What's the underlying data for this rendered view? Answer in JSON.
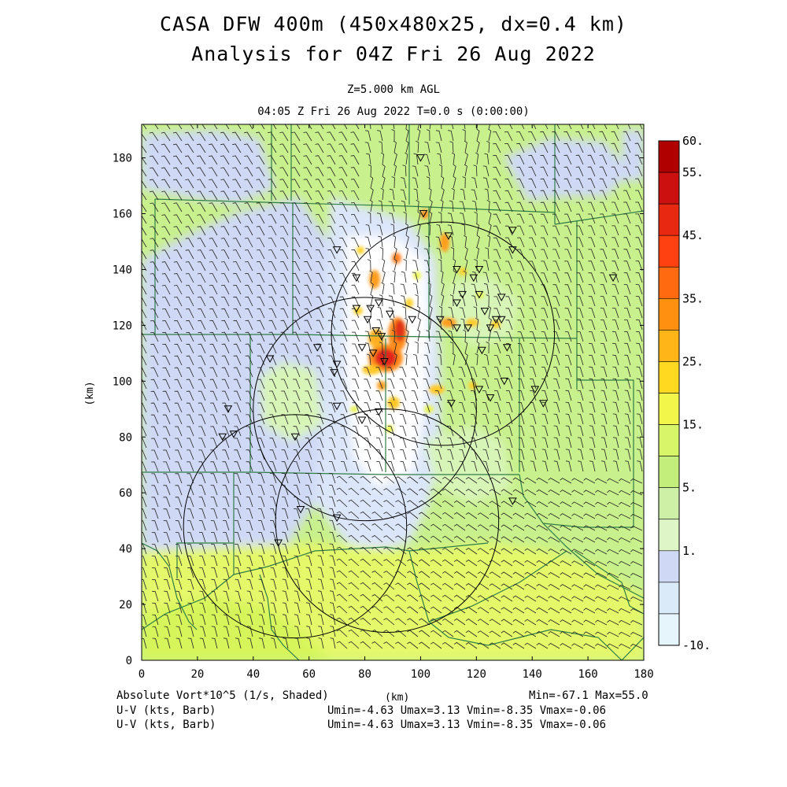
{
  "title": {
    "line1": "CASA DFW 400m (450x480x25, dx=0.4 km)",
    "line2": "Analysis for 04Z Fri 26 Aug 2022"
  },
  "subtitle": {
    "level": "Z=5.000 km AGL",
    "time": "04:05 Z Fri 26 Aug 2022    T=0.0 s (0:00:00)"
  },
  "axes": {
    "x_ticks": [
      "0",
      "20",
      "40",
      "60",
      "80",
      "100",
      "120",
      "140",
      "160",
      "180"
    ],
    "y_ticks": [
      "0",
      "20",
      "40",
      "60",
      "80",
      "100",
      "120",
      "140",
      "160",
      "180"
    ],
    "x_label": "(km)",
    "y_label": "(km)"
  },
  "colorbar": {
    "labels": [
      "60.",
      "55.",
      "45.",
      "35.",
      "25.",
      "15.",
      "5.",
      "1.",
      "-10."
    ],
    "colors": [
      "#b00000",
      "#cc1010",
      "#e82810",
      "#ff4010",
      "#ff6a10",
      "#ff9010",
      "#ffb418",
      "#ffd820",
      "#f2f54a",
      "#d8f56a",
      "#c4ee7c",
      "#cdf0a6",
      "#ddf5c7",
      "#cfd9f5",
      "#dbeaf8",
      "#e6f4fb"
    ]
  },
  "footer": {
    "field": "Absolute Vort*10^5 (1/s, Shaded)",
    "xunit": "(km)",
    "minmax": "Min=-67.1 Max=55.0",
    "wind1_label": "U-V (kts, Barb)",
    "wind1_stats": "Umin=-4.63 Umax=3.13 Vmin=-8.35 Vmax=-0.06",
    "wind2_label": "U-V (kts, Barb)",
    "wind2_stats": "Umin=-4.63 Umax=3.13 Vmin=-8.35 Vmax=-0.06"
  },
  "field_colors": {
    "background": "#c8f08c",
    "light_green": "#d8f5b8",
    "blue": "#cfd9f5",
    "yellow_green": "#e4f86a",
    "white": "#ffffff",
    "boundary": "#2e7d45"
  },
  "radars": [
    {
      "name": "radar-1",
      "x_km": 55,
      "y_km": 48,
      "radius_km": 40
    },
    {
      "name": "radar-2",
      "x_km": 88,
      "y_km": 50,
      "radius_km": 40
    },
    {
      "name": "radar-3",
      "x_km": 80,
      "y_km": 90,
      "radius_km": 40
    },
    {
      "name": "radar-4",
      "x_km": 108,
      "y_km": 117,
      "radius_km": 40
    }
  ],
  "stations_km": [
    [
      100,
      180
    ],
    [
      101,
      160
    ],
    [
      110,
      152
    ],
    [
      133,
      154
    ],
    [
      133,
      147
    ],
    [
      70,
      147
    ],
    [
      77,
      137
    ],
    [
      113,
      140
    ],
    [
      121,
      140
    ],
    [
      119,
      137
    ],
    [
      115,
      131
    ],
    [
      121,
      131
    ],
    [
      129,
      130
    ],
    [
      113,
      128
    ],
    [
      77,
      126
    ],
    [
      82,
      126
    ],
    [
      85,
      128
    ],
    [
      89,
      124
    ],
    [
      97,
      122
    ],
    [
      107,
      122
    ],
    [
      123,
      125
    ],
    [
      127,
      122
    ],
    [
      129,
      122
    ],
    [
      125,
      119
    ],
    [
      113,
      119
    ],
    [
      117,
      119
    ],
    [
      81,
      122
    ],
    [
      84,
      118
    ],
    [
      86,
      116
    ],
    [
      79,
      112
    ],
    [
      63,
      112
    ],
    [
      83,
      110
    ],
    [
      131,
      112
    ],
    [
      87,
      107
    ],
    [
      70,
      106
    ],
    [
      46,
      108
    ],
    [
      122,
      111
    ],
    [
      69,
      103
    ],
    [
      130,
      100
    ],
    [
      121,
      97
    ],
    [
      141,
      97
    ],
    [
      125,
      94
    ],
    [
      144,
      92
    ],
    [
      111,
      92
    ],
    [
      70,
      91
    ],
    [
      79,
      86
    ],
    [
      85,
      89
    ],
    [
      31,
      90
    ],
    [
      33,
      81
    ],
    [
      29,
      80
    ],
    [
      55,
      80
    ],
    [
      133,
      57
    ],
    [
      57,
      54
    ],
    [
      70,
      51
    ],
    [
      49,
      42
    ],
    [
      169,
      137
    ]
  ]
}
